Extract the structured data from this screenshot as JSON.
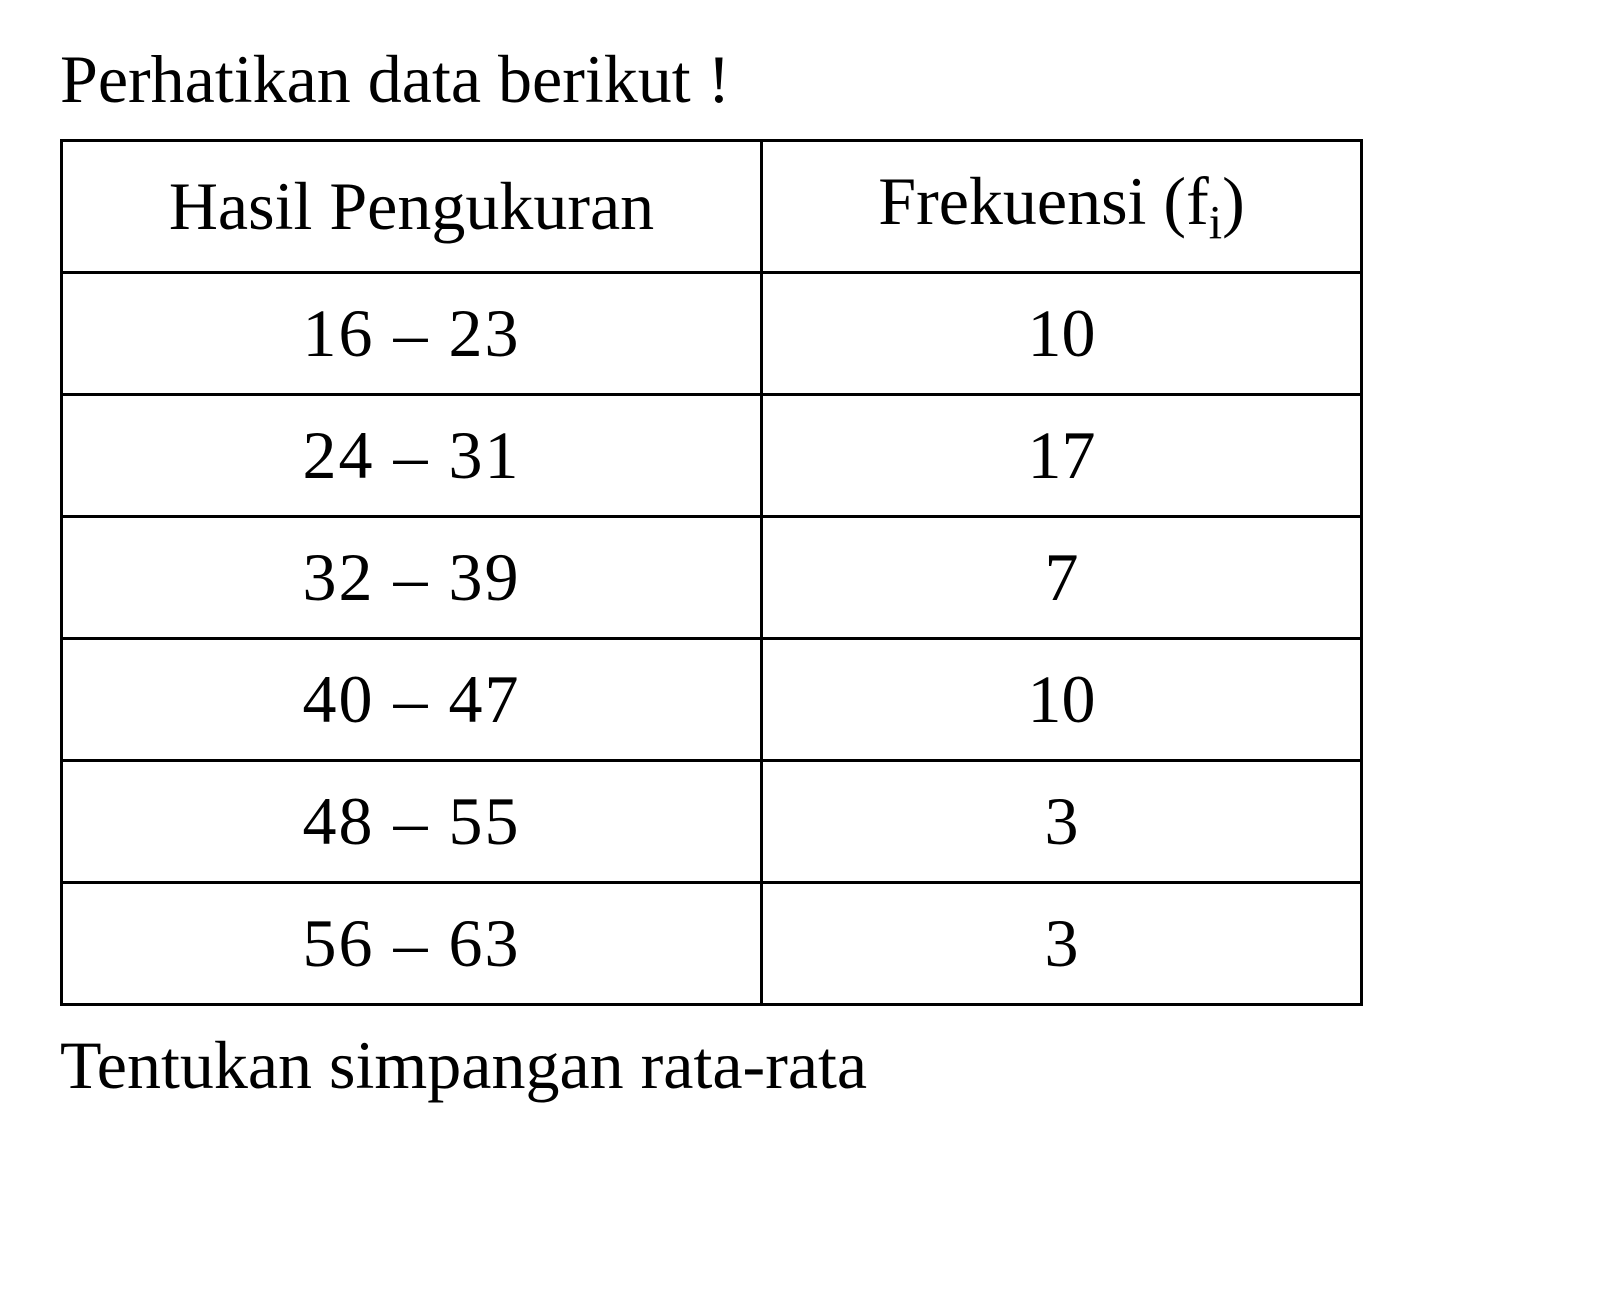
{
  "title": "Perhatikan data berikut !",
  "table": {
    "type": "table",
    "headers": {
      "col1": "Hasil Pengukuran",
      "col2_prefix": "Frekuensi (f",
      "col2_subscript": "i",
      "col2_suffix": ")"
    },
    "rows": [
      {
        "range": "16 – 23",
        "freq": "10"
      },
      {
        "range": "24 – 31",
        "freq": "17"
      },
      {
        "range": "32 – 39",
        "freq": "7"
      },
      {
        "range": "40 – 47",
        "freq": "10"
      },
      {
        "range": "48 – 55",
        "freq": "3"
      },
      {
        "range": "56 – 63",
        "freq": "3"
      }
    ],
    "border_color": "#000000",
    "border_width": 3,
    "background_color": "#ffffff",
    "text_color": "#000000",
    "font_family": "Times New Roman",
    "header_fontsize": 68,
    "cell_fontsize": 68,
    "col1_width": 700,
    "col2_width": 600
  },
  "bottom_text": "Tentukan simpangan rata-rata"
}
